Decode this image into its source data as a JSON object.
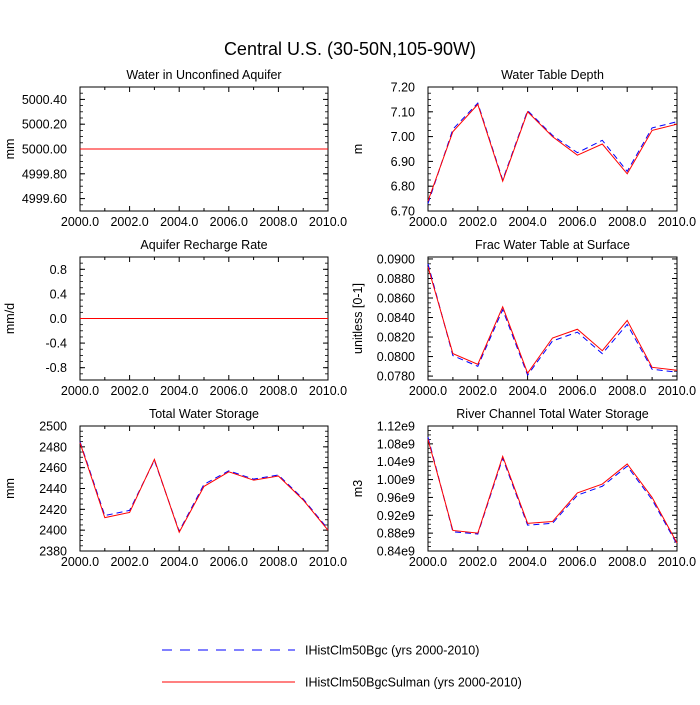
{
  "figure": {
    "title": "Central U.S. (30-50N,105-90W)"
  },
  "legend": {
    "entries": [
      {
        "label": "IHistClm50Bgc (yrs 2000-2010)",
        "color": "#0000ff",
        "dash": true
      },
      {
        "label": "IHistClm50BgcSulman (yrs 2000-2010)",
        "color": "#ff0000",
        "dash": false
      }
    ]
  },
  "chart_data": [
    {
      "type": "line",
      "title": "Water in Unconfined Aquifer",
      "ylabel": "mm",
      "xlim": [
        2000,
        2010
      ],
      "ylim": [
        4999.5,
        5000.5
      ],
      "xticks": [
        "2000.0",
        "2002.0",
        "2004.0",
        "2006.0",
        "2008.0",
        "2010.0"
      ],
      "yticks": [
        "4999.60",
        "4999.80",
        "5000.00",
        "5000.20",
        "5000.40"
      ],
      "x": [
        2000,
        2001,
        2002,
        2003,
        2004,
        2005,
        2006,
        2007,
        2008,
        2009,
        2010
      ],
      "series": [
        {
          "name": "IHistClm50Bgc (yrs 2000-2010)",
          "color": "#0000ff",
          "dash": true,
          "values": [
            5000,
            5000,
            5000,
            5000,
            5000,
            5000,
            5000,
            5000,
            5000,
            5000,
            5000
          ]
        },
        {
          "name": "IHistClm50BgcSulman (yrs 2000-2010)",
          "color": "#ff0000",
          "dash": false,
          "values": [
            5000,
            5000,
            5000,
            5000,
            5000,
            5000,
            5000,
            5000,
            5000,
            5000,
            5000
          ]
        }
      ]
    },
    {
      "type": "line",
      "title": "Water Table Depth",
      "ylabel": "m",
      "xlim": [
        2000,
        2010
      ],
      "ylim": [
        6.7,
        7.2
      ],
      "xticks": [
        "2000.0",
        "2002.0",
        "2004.0",
        "2006.0",
        "2008.0",
        "2010.0"
      ],
      "yticks": [
        "6.70",
        "6.80",
        "6.90",
        "7.00",
        "7.10",
        "7.20"
      ],
      "x": [
        2000,
        2001,
        2002,
        2003,
        2004,
        2005,
        2006,
        2007,
        2008,
        2009,
        2010
      ],
      "series": [
        {
          "name": "IHistClm50Bgc (yrs 2000-2010)",
          "color": "#0000ff",
          "dash": true,
          "values": [
            6.73,
            7.03,
            7.135,
            6.825,
            7.105,
            7.005,
            6.935,
            6.985,
            6.86,
            7.035,
            7.06
          ]
        },
        {
          "name": "IHistClm50BgcSulman (yrs 2000-2010)",
          "color": "#ff0000",
          "dash": false,
          "values": [
            6.74,
            7.02,
            7.13,
            6.82,
            7.1,
            7.0,
            6.925,
            6.97,
            6.85,
            7.025,
            7.05
          ]
        }
      ]
    },
    {
      "type": "line",
      "title": "Aquifer Recharge Rate",
      "ylabel": "mm/d",
      "xlim": [
        2000,
        2010
      ],
      "ylim": [
        -1.0,
        1.0
      ],
      "xticks": [
        "2000.0",
        "2002.0",
        "2004.0",
        "2006.0",
        "2008.0",
        "2010.0"
      ],
      "yticks": [
        "-0.8",
        "-0.4",
        "0.0",
        "0.4",
        "0.8"
      ],
      "x": [
        2000,
        2001,
        2002,
        2003,
        2004,
        2005,
        2006,
        2007,
        2008,
        2009,
        2010
      ],
      "series": [
        {
          "name": "IHistClm50Bgc (yrs 2000-2010)",
          "color": "#0000ff",
          "dash": true,
          "values": [
            0,
            0,
            0,
            0,
            0,
            0,
            0,
            0,
            0,
            0,
            0
          ]
        },
        {
          "name": "IHistClm50BgcSulman (yrs 2000-2010)",
          "color": "#ff0000",
          "dash": false,
          "values": [
            0,
            0,
            0,
            0,
            0,
            0,
            0,
            0,
            0,
            0,
            0
          ]
        }
      ]
    },
    {
      "type": "line",
      "title": "Frac Water Table at Surface",
      "ylabel": "unitless [0-1]",
      "xlim": [
        2000,
        2010
      ],
      "ylim": [
        0.0776,
        0.0902
      ],
      "xticks": [
        "2000.0",
        "2002.0",
        "2004.0",
        "2006.0",
        "2008.0",
        "2010.0"
      ],
      "yticks": [
        "0.0780",
        "0.0800",
        "0.0820",
        "0.0840",
        "0.0860",
        "0.0880",
        "0.0900"
      ],
      "x": [
        2000,
        2001,
        2002,
        2003,
        2004,
        2005,
        2006,
        2007,
        2008,
        2009,
        2010
      ],
      "series": [
        {
          "name": "IHistClm50Bgc (yrs 2000-2010)",
          "color": "#0000ff",
          "dash": true,
          "values": [
            0.0895,
            0.0801,
            0.079,
            0.0848,
            0.0781,
            0.0816,
            0.0825,
            0.0803,
            0.0833,
            0.0787,
            0.0784
          ]
        },
        {
          "name": "IHistClm50BgcSulman (yrs 2000-2010)",
          "color": "#ff0000",
          "dash": false,
          "values": [
            0.0892,
            0.0803,
            0.0792,
            0.0851,
            0.0783,
            0.0819,
            0.0828,
            0.0806,
            0.0837,
            0.0789,
            0.0786
          ]
        }
      ]
    },
    {
      "type": "line",
      "title": "Total Water Storage",
      "ylabel": "mm",
      "xlim": [
        2000,
        2010
      ],
      "ylim": [
        2380,
        2500
      ],
      "xticks": [
        "2000.0",
        "2002.0",
        "2004.0",
        "2006.0",
        "2008.0",
        "2010.0"
      ],
      "yticks": [
        "2380",
        "2400",
        "2420",
        "2440",
        "2460",
        "2480",
        "2500"
      ],
      "x": [
        2000,
        2001,
        2002,
        2003,
        2004,
        2005,
        2006,
        2007,
        2008,
        2009,
        2010
      ],
      "series": [
        {
          "name": "IHistClm50Bgc (yrs 2000-2010)",
          "color": "#0000ff",
          "dash": true,
          "values": [
            2485,
            2414,
            2419,
            2467,
            2399,
            2444,
            2457,
            2449,
            2453,
            2430,
            2401
          ]
        },
        {
          "name": "IHistClm50BgcSulman (yrs 2000-2010)",
          "color": "#ff0000",
          "dash": false,
          "values": [
            2484,
            2412,
            2417,
            2468,
            2398,
            2442,
            2456,
            2448,
            2452,
            2429,
            2400
          ]
        }
      ]
    },
    {
      "type": "line",
      "title": "River Channel Total Water Storage",
      "ylabel": "m3",
      "xlim": [
        2000,
        2010
      ],
      "ylim": [
        840000000.0,
        1120000000.0
      ],
      "xticks": [
        "2000.0",
        "2002.0",
        "2004.0",
        "2006.0",
        "2008.0",
        "2010.0"
      ],
      "yticks": [
        "0.84e9",
        "0.88e9",
        "0.92e9",
        "0.96e9",
        "1.00e9",
        "1.04e9",
        "1.08e9",
        "1.12e9"
      ],
      "x": [
        2000,
        2001,
        2002,
        2003,
        2004,
        2005,
        2006,
        2007,
        2008,
        2009,
        2010
      ],
      "series": [
        {
          "name": "IHistClm50Bgc (yrs 2000-2010)",
          "color": "#0000ff",
          "dash": true,
          "values": [
            1095000000.0,
            883000000.0,
            878000000.0,
            1048000000.0,
            898000000.0,
            902000000.0,
            965000000.0,
            985000000.0,
            1030000000.0,
            955000000.0,
            855000000.0
          ]
        },
        {
          "name": "IHistClm50BgcSulman (yrs 2000-2010)",
          "color": "#ff0000",
          "dash": false,
          "values": [
            1090000000.0,
            886000000.0,
            880000000.0,
            1052000000.0,
            902000000.0,
            906000000.0,
            970000000.0,
            990000000.0,
            1035000000.0,
            960000000.0,
            858000000.0
          ]
        }
      ]
    }
  ]
}
